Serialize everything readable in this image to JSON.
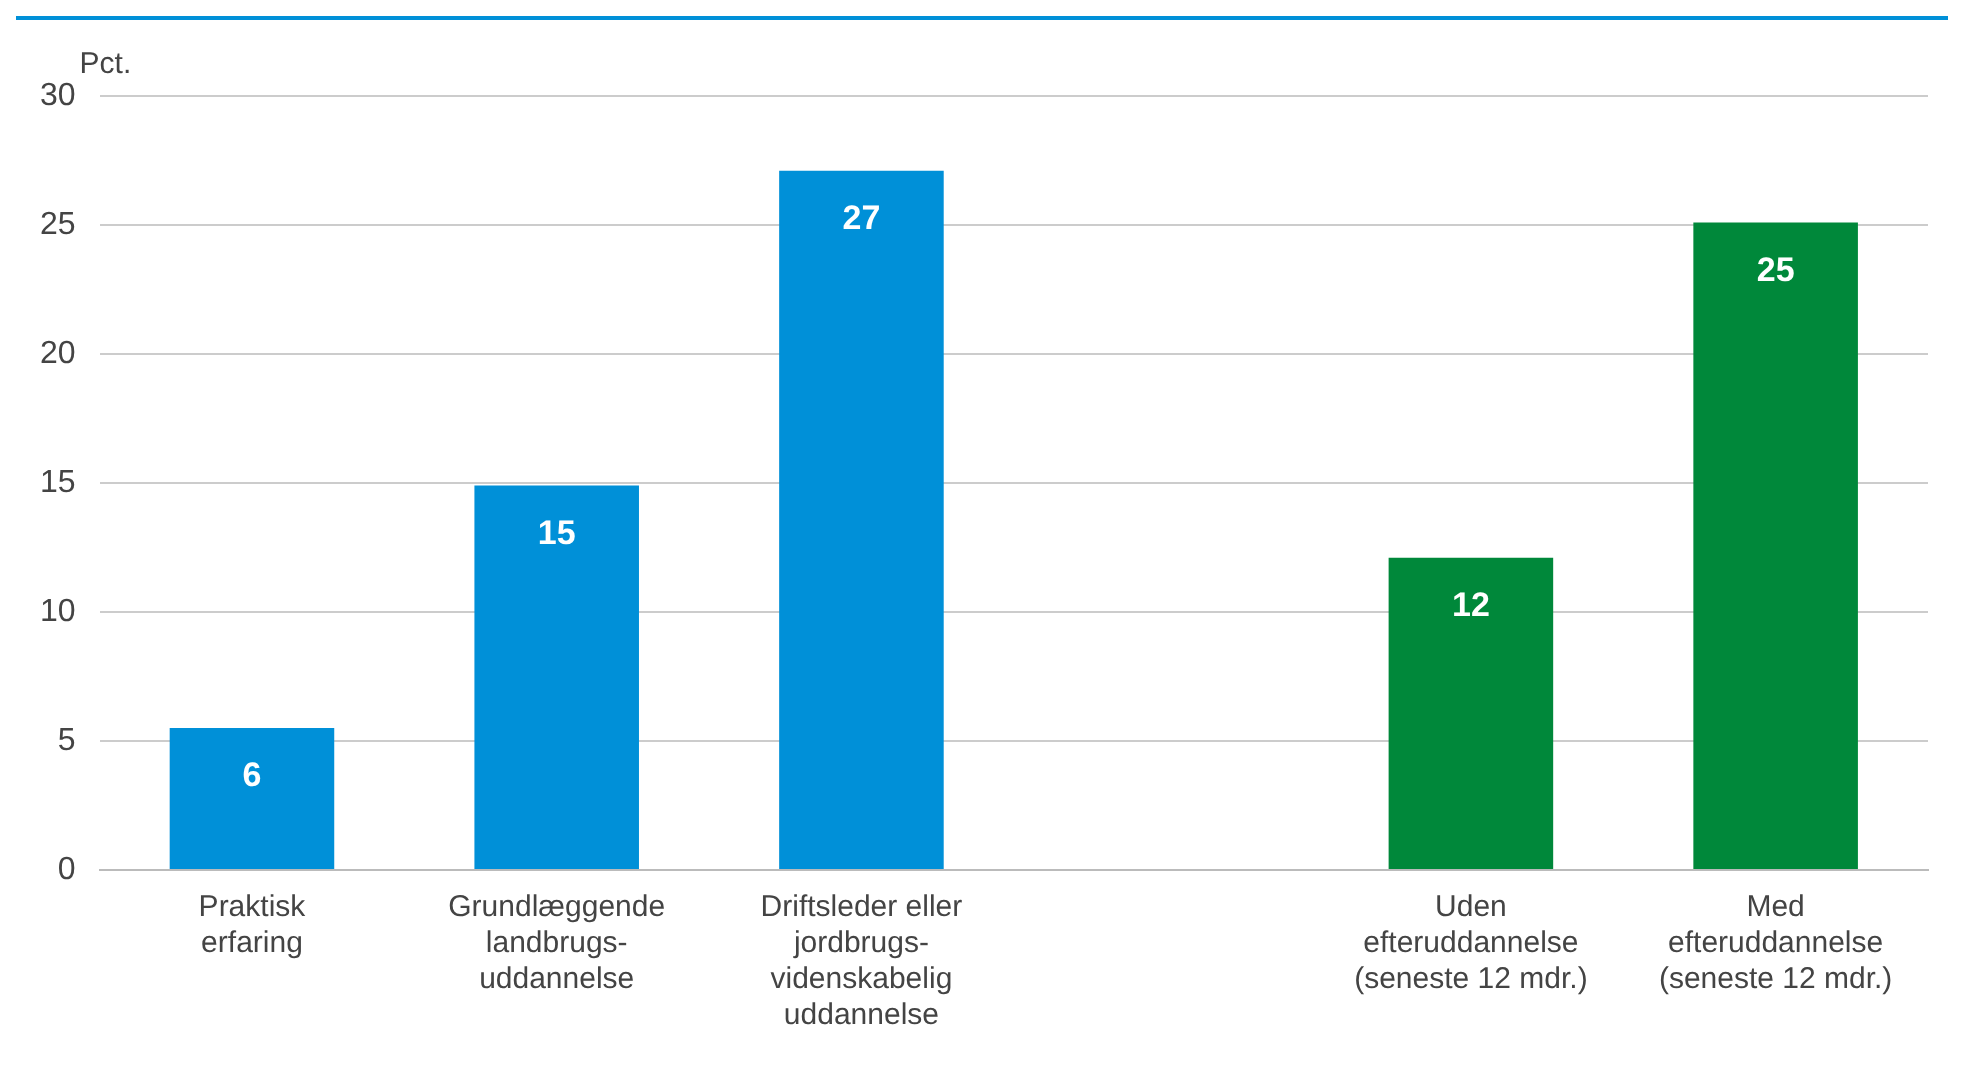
{
  "chart_data": {
    "type": "bar",
    "ylabel": "Pct.",
    "categories": [
      "Praktisk\nerfaring",
      "Grundlæggende\nlandbrugs-\nuddannelse",
      "Driftsleder eller\njordbrugs-\nvidenskabelig\nuddannelse",
      null,
      "Uden\nefteruddannelse\n(seneste 12 mdr.)",
      "Med\nefteruddannelse\n(seneste 12 mdr.)"
    ],
    "values": [
      5.5,
      14.9,
      27.1,
      null,
      12.1,
      25.1
    ],
    "value_labels": [
      "6",
      "15",
      "27",
      null,
      "12",
      "25"
    ],
    "colors": [
      "#0090d8",
      "#0090d8",
      "#0090d8",
      "#0090d8",
      "#00883a",
      "#00883a"
    ],
    "ylim": [
      0,
      30
    ],
    "yticks": [
      0,
      5,
      10,
      15,
      20,
      25,
      30
    ],
    "grid": "y",
    "legend": false
  }
}
